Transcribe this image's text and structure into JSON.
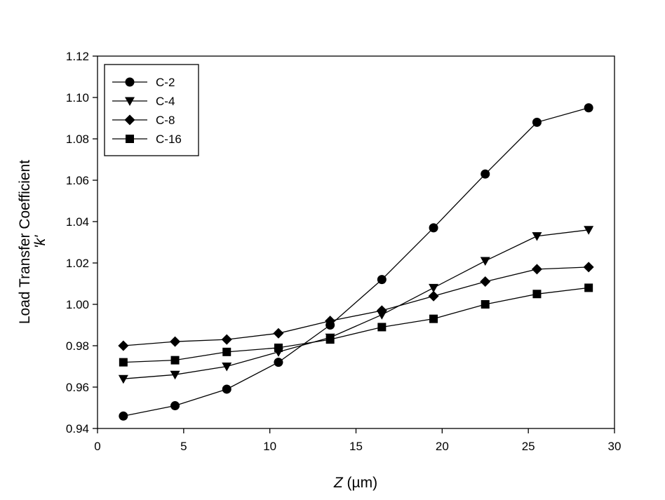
{
  "chart_data": {
    "type": "line",
    "xlabel_italic": "Z",
    "xlabel_rest": " (µm)",
    "ylabel_line1": "Load Transfer Coefficient",
    "ylabel_line2": "'k'",
    "xlim": [
      0,
      30
    ],
    "ylim": [
      0.94,
      1.12
    ],
    "x_ticks": [
      "0",
      "5",
      "10",
      "15",
      "20",
      "25",
      "30"
    ],
    "y_ticks": [
      "0.94",
      "0.96",
      "0.98",
      "1.00",
      "1.02",
      "1.04",
      "1.06",
      "1.08",
      "1.10",
      "1.12"
    ],
    "grid": false,
    "legend_position": "top-left",
    "x": [
      1.5,
      4.5,
      7.5,
      10.5,
      13.5,
      16.5,
      19.5,
      22.5,
      25.5,
      28.5
    ],
    "series": [
      {
        "name": "C-2",
        "marker": "circle",
        "values": [
          0.946,
          0.951,
          0.959,
          0.972,
          0.99,
          1.012,
          1.037,
          1.063,
          1.088,
          1.095
        ]
      },
      {
        "name": "C-4",
        "marker": "triangle-down",
        "values": [
          0.964,
          0.966,
          0.97,
          0.977,
          0.984,
          0.995,
          1.008,
          1.021,
          1.033,
          1.036
        ]
      },
      {
        "name": "C-8",
        "marker": "diamond",
        "values": [
          0.98,
          0.982,
          0.983,
          0.986,
          0.992,
          0.997,
          1.004,
          1.011,
          1.017,
          1.018
        ]
      },
      {
        "name": "C-16",
        "marker": "square",
        "values": [
          0.972,
          0.973,
          0.977,
          0.979,
          0.983,
          0.989,
          0.993,
          1.0,
          1.005,
          1.008
        ]
      }
    ],
    "colors": {
      "line": "#000000",
      "marker": "#000000",
      "background": "#ffffff"
    }
  }
}
